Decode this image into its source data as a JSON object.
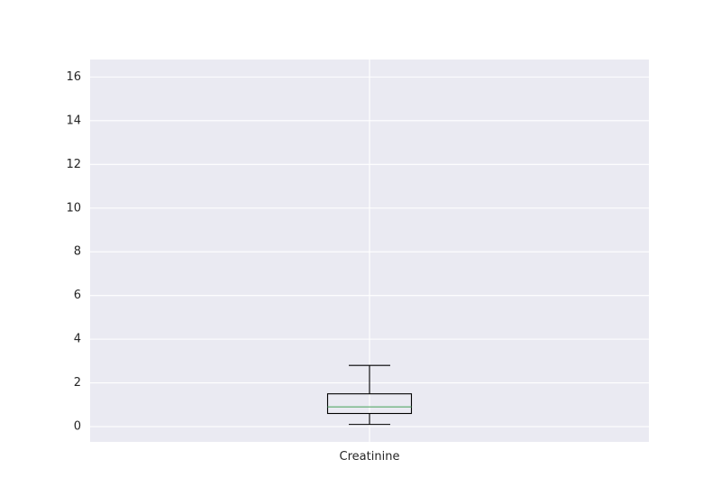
{
  "chart_data": {
    "type": "box",
    "categories": [
      "Creatinine"
    ],
    "boxes": [
      {
        "name": "Creatinine",
        "whisker_low": 0.1,
        "q1": 0.6,
        "median": 0.9,
        "q3": 1.5,
        "whisker_high": 2.8
      }
    ],
    "title": "",
    "xlabel": "",
    "ylabel": "",
    "ylim": [
      -0.7,
      16.8
    ],
    "yticks": [
      0,
      2,
      4,
      6,
      8,
      10,
      12,
      14,
      16
    ],
    "ytick_labels": [
      "0",
      "2",
      "4",
      "6",
      "8",
      "10",
      "12",
      "14",
      "16"
    ],
    "grid": true,
    "legend": false,
    "colors": {
      "plot_background": "#eaeaf2",
      "grid": "#ffffff",
      "box": "#000000",
      "median": "#55a868",
      "text": "#262626"
    }
  }
}
